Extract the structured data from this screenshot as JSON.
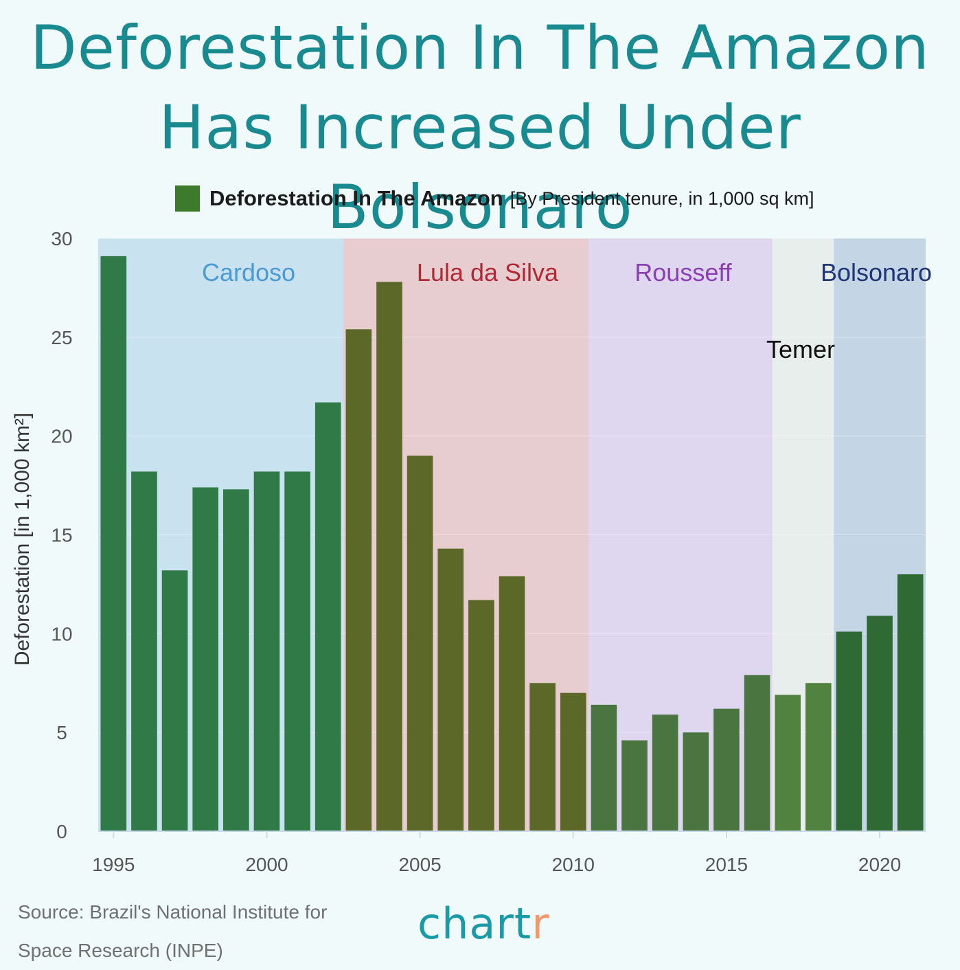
{
  "title_line1": "Deforestation In The Amazon",
  "title_line2": "Has Increased Under Bolsonaro",
  "legend": {
    "label": "Deforestation In The Amazon",
    "note": "[By President tenure, in 1,000 sq km]",
    "color": "#3d7a2c"
  },
  "source_line1": "Source: Brazil's National Institute for",
  "source_line2": "Space Research (INPE)",
  "brand": {
    "main": "chart",
    "accent": "r"
  },
  "chart_data": {
    "type": "bar",
    "ylabel": "Deforestation [in 1,000 km²]",
    "xlabel": "",
    "ylim": [
      0,
      30
    ],
    "yticks": [
      0,
      5,
      10,
      15,
      20,
      25,
      30
    ],
    "xticks": [
      1995,
      2000,
      2005,
      2010,
      2015,
      2020
    ],
    "x": [
      1995,
      1996,
      1997,
      1998,
      1999,
      2000,
      2001,
      2002,
      2003,
      2004,
      2005,
      2006,
      2007,
      2008,
      2009,
      2010,
      2011,
      2012,
      2013,
      2014,
      2015,
      2016,
      2017,
      2018,
      2019,
      2020,
      2021
    ],
    "values": [
      29.1,
      18.2,
      13.2,
      17.4,
      17.3,
      18.2,
      18.2,
      21.7,
      25.4,
      27.8,
      19.0,
      14.3,
      11.7,
      12.9,
      7.5,
      7.0,
      6.4,
      4.6,
      5.9,
      5.0,
      6.2,
      7.9,
      6.9,
      7.5,
      10.1,
      10.9,
      13.0
    ],
    "grid": true,
    "legend_position": "top",
    "presidents": [
      {
        "name": "Cardoso",
        "start": 1995,
        "end": 2002,
        "bg": "#c8e2f0",
        "bar": "#2f7a46",
        "text": "#4a9ad6"
      },
      {
        "name": "Lula da Silva",
        "start": 2003,
        "end": 2010,
        "bg": "#e8cdd0",
        "bar": "#5b6827",
        "text": "#b02a35"
      },
      {
        "name": "Rousseff",
        "start": 2011,
        "end": 2016,
        "bg": "#dfd6ef",
        "bar": "#4a7540",
        "text": "#8a3fb5"
      },
      {
        "name": "Temer",
        "start": 2017,
        "end": 2018,
        "bg": "#e8eeec",
        "bar": "#528240",
        "text": "#111111"
      },
      {
        "name": "Bolsonaro",
        "start": 2019,
        "end": 2021,
        "bg": "#c4d6e5",
        "bar": "#2f6a35",
        "text": "#1f3575"
      }
    ]
  }
}
